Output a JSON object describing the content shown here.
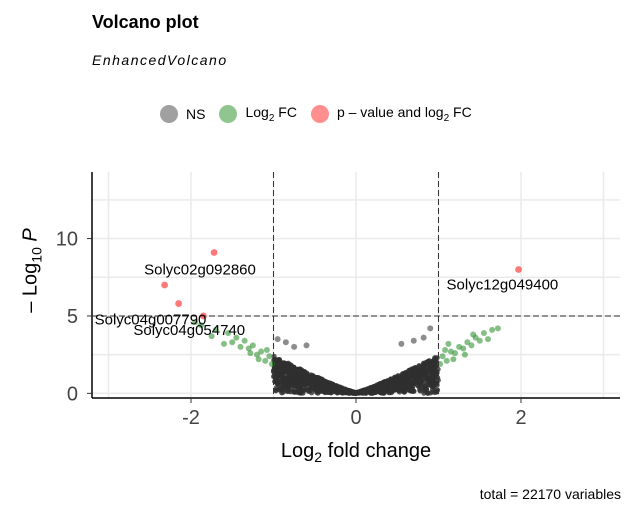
{
  "chart_data": {
    "type": "scatter",
    "title": "Volcano plot",
    "subtitle": "EnhancedVolcano",
    "xlabel_main": "Log",
    "xlabel_sub": "2",
    "xlabel_rest": " fold change",
    "ylabel_prefix": "– Log",
    "ylabel_sub": "10",
    "ylabel_var": " P",
    "caption": "total = 22170 variables",
    "xlim": [
      -3.2,
      3.2
    ],
    "ylim": [
      -0.3,
      14.3
    ],
    "x_ticks": [
      -2,
      0,
      2
    ],
    "y_ticks": [
      0,
      5,
      10
    ],
    "fc_cutoff": 1,
    "p_cutoff_log10": 5,
    "grid": true,
    "legend_position": "top",
    "legend": [
      {
        "key": "ns",
        "label": "NS",
        "color": "#808080"
      },
      {
        "key": "fc",
        "label_main": "Log",
        "label_sub": "2",
        "label_rest": " FC",
        "color": "#228b22"
      },
      {
        "key": "both",
        "label_main": "p – value and log",
        "label_sub": "2",
        "label_rest": " FC",
        "color": "#ff2020"
      }
    ],
    "colors": {
      "ns": "#303030",
      "fc": "#228b22",
      "both": "#ff2020"
    },
    "significant_points": [
      {
        "x": -1.72,
        "y": 9.1,
        "label": "Solyc02g092860"
      },
      {
        "x": -2.32,
        "y": 7.0,
        "label": ""
      },
      {
        "x": -2.15,
        "y": 5.8,
        "label": "Solyc04g007790"
      },
      {
        "x": -1.85,
        "y": 5.0,
        "label": "Solyc04g054740"
      },
      {
        "x": 1.97,
        "y": 8.0,
        "label": "Solyc12g049400"
      }
    ],
    "fc_points": [
      {
        "x": -1.95,
        "y": 4.6
      },
      {
        "x": -1.88,
        "y": 4.4
      },
      {
        "x": -1.7,
        "y": 4.1
      },
      {
        "x": -1.55,
        "y": 3.9
      },
      {
        "x": -1.45,
        "y": 3.6
      },
      {
        "x": -1.35,
        "y": 3.4
      },
      {
        "x": -1.25,
        "y": 3.1
      },
      {
        "x": -1.15,
        "y": 2.7
      },
      {
        "x": -1.05,
        "y": 2.4
      },
      {
        "x": -1.6,
        "y": 3.2
      },
      {
        "x": -1.3,
        "y": 2.9
      },
      {
        "x": -1.1,
        "y": 2.1
      },
      {
        "x": -1.2,
        "y": 2.5
      },
      {
        "x": -1.4,
        "y": 3.0
      },
      {
        "x": -1.02,
        "y": 1.9
      },
      {
        "x": -1.75,
        "y": 3.7
      },
      {
        "x": -1.5,
        "y": 3.3
      },
      {
        "x": -1.08,
        "y": 2.8
      },
      {
        "x": -1.18,
        "y": 2.2
      },
      {
        "x": -1.28,
        "y": 2.6
      },
      {
        "x": 1.05,
        "y": 2.4
      },
      {
        "x": 1.15,
        "y": 2.7
      },
      {
        "x": 1.25,
        "y": 3.0
      },
      {
        "x": 1.35,
        "y": 3.3
      },
      {
        "x": 1.45,
        "y": 3.6
      },
      {
        "x": 1.55,
        "y": 3.9
      },
      {
        "x": 1.65,
        "y": 4.1
      },
      {
        "x": 1.3,
        "y": 2.9
      },
      {
        "x": 1.1,
        "y": 2.1
      },
      {
        "x": 1.2,
        "y": 2.6
      },
      {
        "x": 1.4,
        "y": 3.1
      },
      {
        "x": 1.02,
        "y": 1.9
      },
      {
        "x": 1.5,
        "y": 3.4
      },
      {
        "x": 1.08,
        "y": 2.8
      },
      {
        "x": 1.18,
        "y": 2.2
      },
      {
        "x": 1.6,
        "y": 3.5
      },
      {
        "x": 1.72,
        "y": 4.2
      },
      {
        "x": 1.42,
        "y": 3.8
      },
      {
        "x": 1.12,
        "y": 3.2
      },
      {
        "x": 1.32,
        "y": 2.5
      }
    ],
    "ns_points": [
      {
        "x": 0.9,
        "y": 4.2
      },
      {
        "x": 0.82,
        "y": 3.6
      },
      {
        "x": -0.95,
        "y": 3.5
      },
      {
        "x": -0.85,
        "y": 3.3
      },
      {
        "x": 0.55,
        "y": 3.2
      },
      {
        "x": -0.6,
        "y": 3.1
      },
      {
        "x": 0.7,
        "y": 3.4
      },
      {
        "x": -0.75,
        "y": 3.0
      }
    ]
  }
}
